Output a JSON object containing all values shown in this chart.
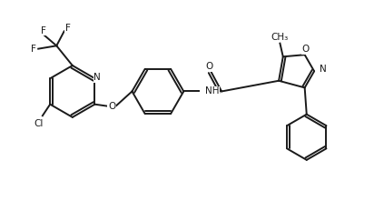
{
  "bg_color": "#ffffff",
  "line_color": "#1a1a1a",
  "line_width": 1.4,
  "font_size": 7.5,
  "fig_width": 4.23,
  "fig_height": 2.21,
  "dpi": 100,
  "xlim": [
    0,
    10
  ],
  "ylim": [
    0,
    5.22
  ]
}
